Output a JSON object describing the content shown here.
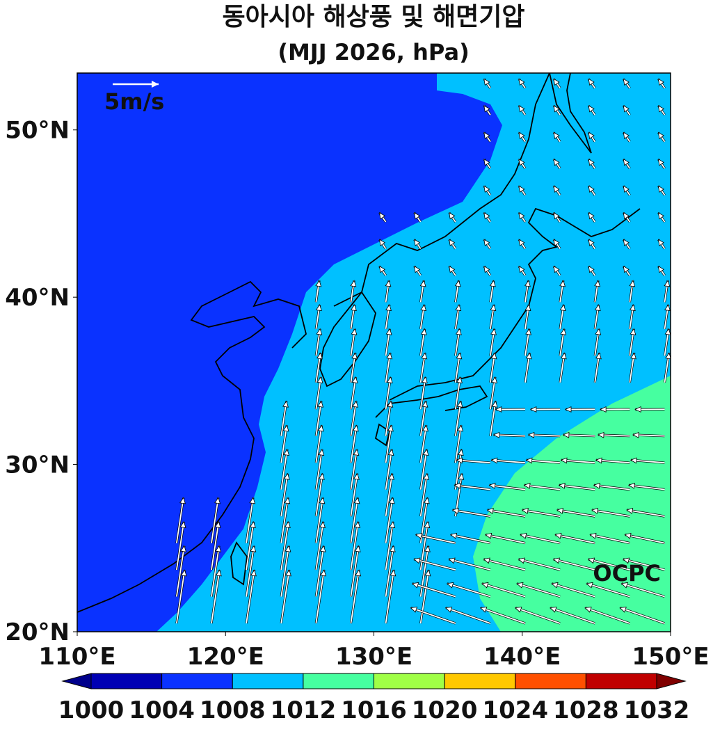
{
  "map": {
    "title": "동아시아 해상풍 및 해면기압",
    "subtitle": "(MJJ 2026, hPa)",
    "xlim": [
      110,
      150
    ],
    "ylim": [
      20,
      53.4
    ],
    "xticks": [
      {
        "value": 110,
        "label": "110°E"
      },
      {
        "value": 120,
        "label": "120°E"
      },
      {
        "value": 130,
        "label": "130°E"
      },
      {
        "value": 140,
        "label": "140°E"
      },
      {
        "value": 150,
        "label": "150°E"
      }
    ],
    "yticks": [
      {
        "value": 20,
        "label": "20°N"
      },
      {
        "value": 30,
        "label": "30°N"
      },
      {
        "value": 40,
        "label": "40°N"
      },
      {
        "value": 50,
        "label": "50°N"
      }
    ],
    "reference_arrow": "5m/s",
    "watermark": "OCPC",
    "colorbar": {
      "levels": [
        1000,
        1004,
        1008,
        1012,
        1016,
        1020,
        1024,
        1028,
        1032
      ],
      "colors": [
        "#0000b4",
        "#0a32ff",
        "#00c0ff",
        "#46ffa0",
        "#a0ff46",
        "#ffc800",
        "#ff5000",
        "#c00000"
      ],
      "extend_colors": [
        "#00008c",
        "#800000"
      ]
    }
  }
}
